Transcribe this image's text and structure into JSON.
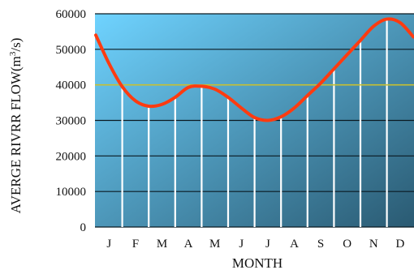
{
  "chart_data": {
    "type": "line",
    "xlabel": "MONTH",
    "ylabel": {
      "prefix": "AVERGE RIVRR FLOW(m",
      "superscript": "3",
      "suffix": "/s)"
    },
    "months": [
      "J",
      "F",
      "M",
      "A",
      "M",
      "J",
      "J",
      "A",
      "S",
      "O",
      "N",
      "D"
    ],
    "ylim": [
      0,
      60000
    ],
    "y_ticks": [
      "0",
      "10000",
      "20000",
      "30000",
      "40000",
      "50000",
      "60000"
    ],
    "grid": true,
    "series": [
      {
        "x": [
          0.0,
          0.5,
          1.0,
          1.5,
          2.0,
          2.5,
          3.0,
          3.5,
          4.0,
          4.5,
          5.0,
          5.5,
          6.0,
          6.5,
          7.0,
          7.5,
          8.0,
          8.5,
          9.0,
          9.5,
          10.0,
          10.5,
          11.0,
          11.5,
          12.0
        ],
        "values": [
          54000,
          46000,
          39500,
          35500,
          34000,
          34500,
          36500,
          39300,
          39600,
          38800,
          36500,
          33500,
          30800,
          30000,
          31000,
          33500,
          37000,
          40500,
          44500,
          48500,
          52500,
          56500,
          58500,
          57500,
          53500
        ],
        "color": "#ff3b10"
      }
    ],
    "reference_line": {
      "value": 40000,
      "color": "#c8c030"
    },
    "month_bars": {
      "x": [
        1,
        2,
        3,
        4,
        5,
        6,
        7,
        8,
        9,
        10,
        11
      ],
      "values": [
        39500,
        34000,
        36500,
        39600,
        36500,
        30800,
        31000,
        37000,
        44500,
        52500,
        58500
      ],
      "color": "#ffffff"
    },
    "background": {
      "top": "#6fd3ff",
      "bottom": "#2a5a72"
    }
  }
}
